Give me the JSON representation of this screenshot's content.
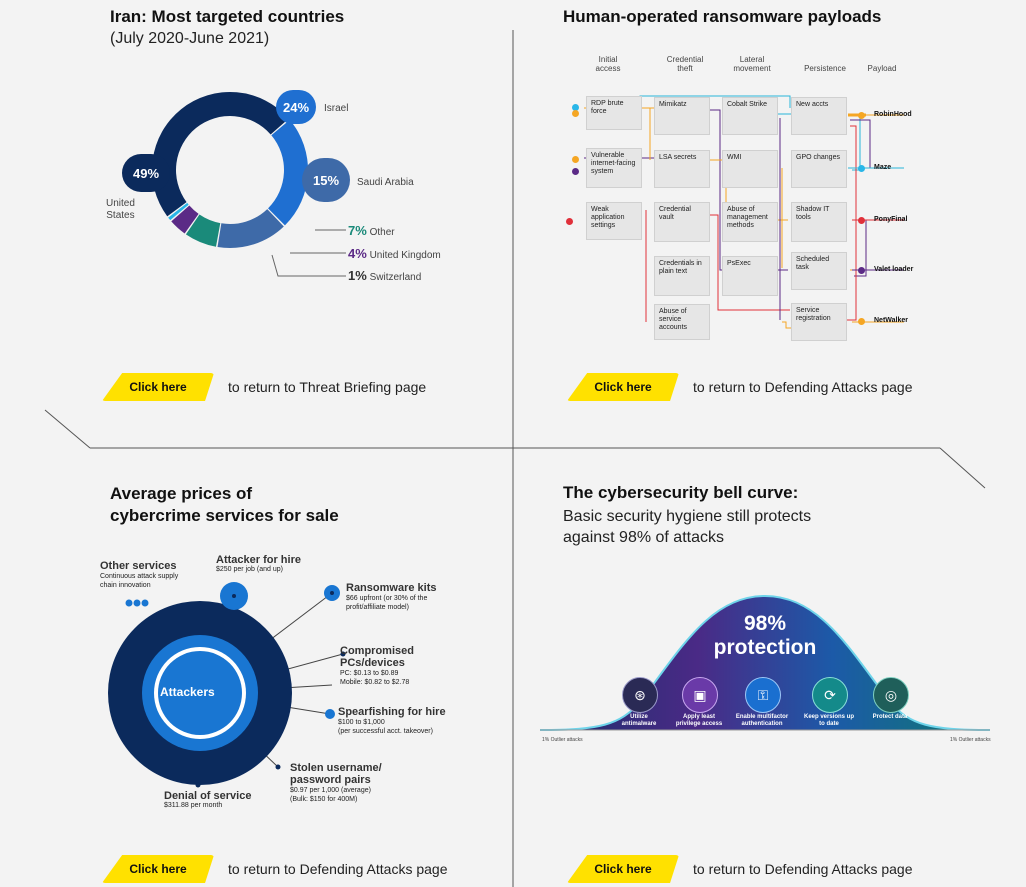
{
  "iran": {
    "title": "Iran: Most targeted countries",
    "subtitle": "(July 2020-June 2021)",
    "slices": [
      {
        "label": "United States",
        "pct": "49%",
        "value": 49,
        "color": "#0b2a5c"
      },
      {
        "label": "Israel",
        "pct": "24%",
        "value": 24,
        "color": "#1f6fd1"
      },
      {
        "label": "Saudi Arabia",
        "pct": "15%",
        "value": 15,
        "color": "#3e6aa8"
      },
      {
        "label": "Other",
        "pct": "7%",
        "value": 7,
        "color": "#1a8a7a"
      },
      {
        "label": "United Kingdom",
        "pct": "4%",
        "value": 4,
        "color": "#5b2a86"
      },
      {
        "label": "Switzerland",
        "pct": "1%",
        "value": 1,
        "color": "#29b6e8"
      }
    ],
    "us_label_1": "United",
    "us_label_2": "States"
  },
  "ransomware": {
    "title": "Human-operated ransomware payloads",
    "columns": {
      "initial_1": "Initial",
      "initial_2": "access",
      "cred_1": "Credential",
      "cred_2": "theft",
      "lat_1": "Lateral",
      "lat_2": "movement",
      "persistence": "Persistence",
      "payload": "Payload"
    },
    "initial": [
      "RDP brute force",
      "Vulnerable internet-facing system",
      "Weak application settings"
    ],
    "credential": [
      "Mimikatz",
      "LSA secrets",
      "Credential vault",
      "Credentials in plain text",
      "Abuse of service accounts"
    ],
    "lateral": [
      "Cobalt Strike",
      "WMI",
      "Abuse of management methods",
      "PsExec"
    ],
    "persist": [
      "New accts",
      "GPO changes",
      "Shadow IT tools",
      "Scheduled task",
      "Service registration"
    ],
    "payloads": [
      "RobinHood",
      "Maze",
      "PonyFinal",
      "Valet loader",
      "NetWalker"
    ]
  },
  "prices": {
    "title_1": "Average prices of",
    "title_2": "cybercrime services for sale",
    "center": "Attackers",
    "other": {
      "name": "Other services",
      "desc_1": "Continuous attack supply",
      "desc_2": "chain innovation"
    },
    "hire": {
      "name": "Attacker for hire",
      "desc": "$250 per job (and up)"
    },
    "kits": {
      "name": "Ransomware kits",
      "desc_1": "$66 upfront (or 30% of the",
      "desc_2": "profit/affiliate model)"
    },
    "pcs": {
      "name_1": "Compromised",
      "name_2": "PCs/devices",
      "desc_1": "PC: $0.13 to $0.89",
      "desc_2": "Mobile: $0.82 to $2.78"
    },
    "spear": {
      "name": "Spearfishing for hire",
      "desc_1": "$100 to $1,000",
      "desc_2": "(per successful acct. takeover)"
    },
    "stolen": {
      "name_1": "Stolen username/",
      "name_2": "password pairs",
      "desc_1": "$0.97 per 1,000 (average)",
      "desc_2": "(Bulk: $150 for 400M)"
    },
    "dos": {
      "name": "Denial of service",
      "desc": "$311.88 per month"
    }
  },
  "bell": {
    "title": "The cybersecurity bell curve:",
    "sub_1": "Basic security hygiene still protects",
    "sub_2": "against 98% of attacks",
    "big_1": "98%",
    "big_2": "protection",
    "items": [
      "Utilize antimalware",
      "Apply least privilege access",
      "Enable multifactor authentication",
      "Keep versions up to date",
      "Protect data"
    ],
    "left_note": "1% Outlier attacks",
    "right_note": "1% Outlier attacks"
  },
  "cta": {
    "button": "Click here",
    "threat": "to return to Threat Briefing page",
    "defending": "to return to Defending Attacks page"
  }
}
